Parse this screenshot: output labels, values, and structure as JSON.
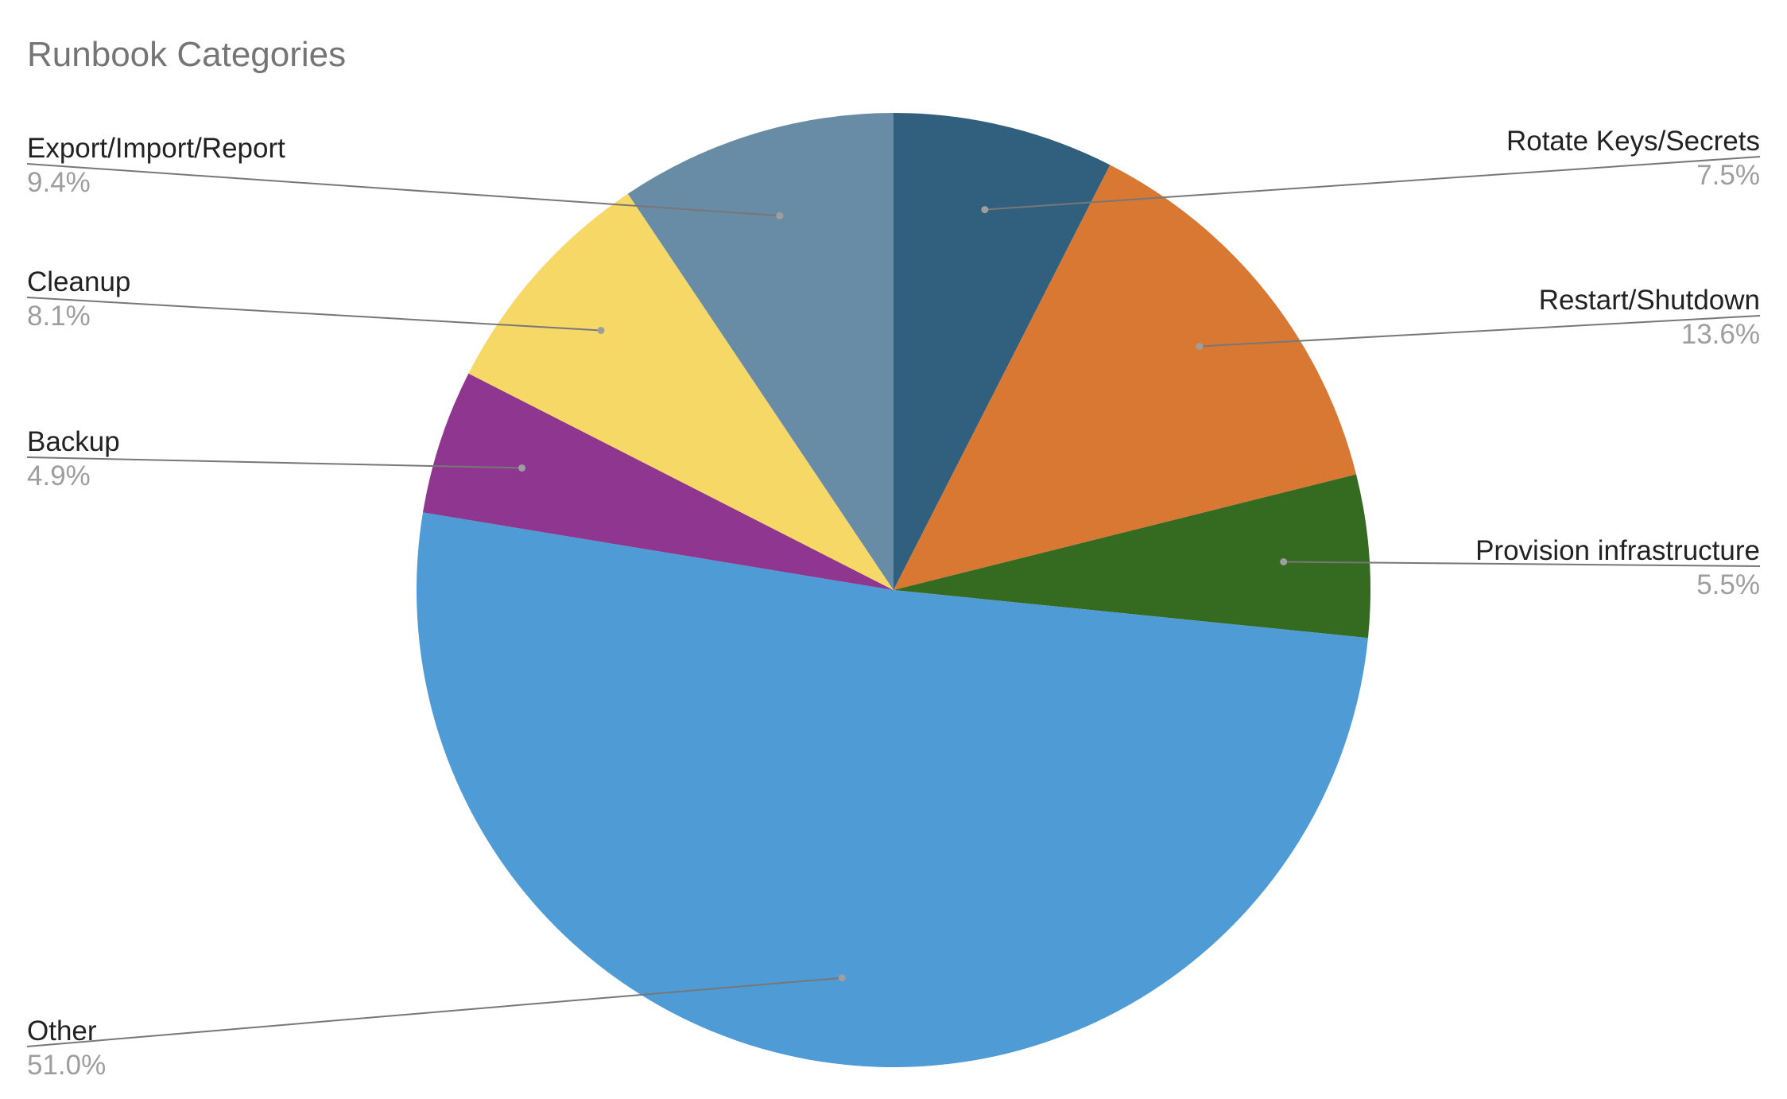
{
  "chart_data": {
    "type": "pie",
    "title": "Runbook Categories",
    "slices": [
      {
        "label": "Rotate Keys/Secrets",
        "value": 7.5,
        "pct_label": "7.5%",
        "color": "#31607f",
        "side": "right"
      },
      {
        "label": "Restart/Shutdown",
        "value": 13.6,
        "pct_label": "13.6%",
        "color": "#d97833",
        "side": "right"
      },
      {
        "label": "Provision infrastructure",
        "value": 5.5,
        "pct_label": "5.5%",
        "color": "#356b20",
        "side": "right"
      },
      {
        "label": "Other",
        "value": 51.0,
        "pct_label": "51.0%",
        "color": "#4f9bd6",
        "side": "left"
      },
      {
        "label": "Backup",
        "value": 4.9,
        "pct_label": "4.9%",
        "color": "#8f3691",
        "side": "left"
      },
      {
        "label": "Cleanup",
        "value": 8.1,
        "pct_label": "8.1%",
        "color": "#f5d866",
        "side": "left"
      },
      {
        "label": "Export/Import/Report",
        "value": 9.4,
        "pct_label": "9.4%",
        "color": "#688ca6",
        "side": "left"
      }
    ],
    "start_angle": "top",
    "direction": "clockwise",
    "legend": "none"
  }
}
